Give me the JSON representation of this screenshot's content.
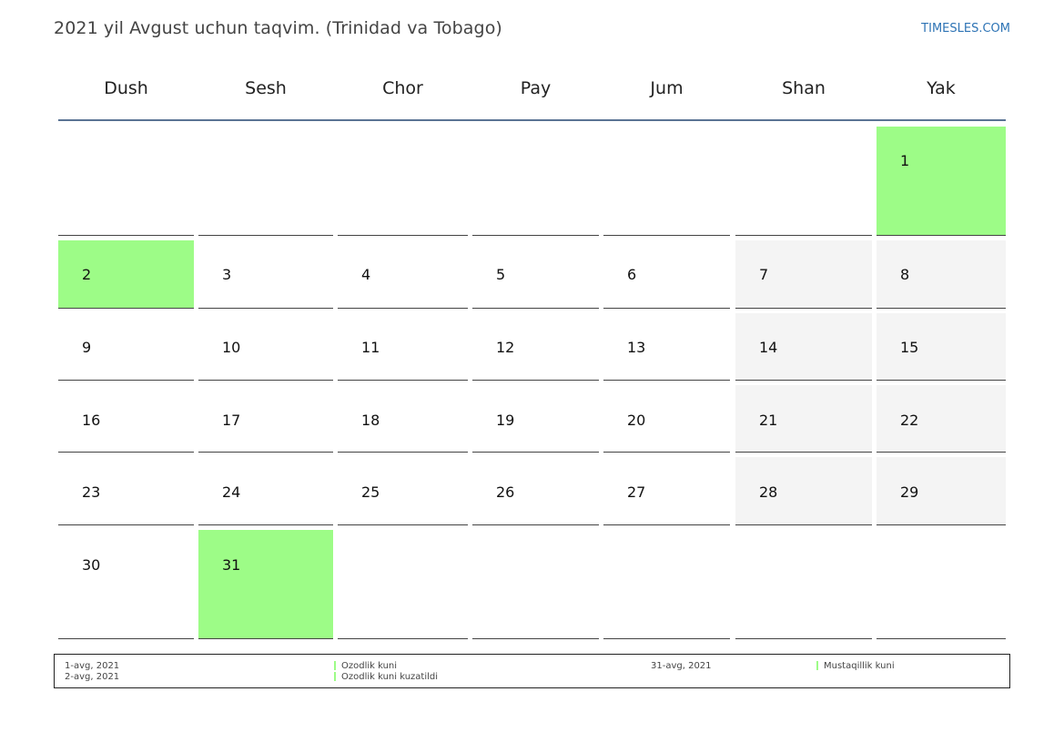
{
  "header": {
    "title": "2021 yil Avgust uchun taqvim. (Trinidad va Tobago)",
    "brand": "TIMESLES.COM"
  },
  "weekdays": [
    "Dush",
    "Sesh",
    "Chor",
    "Pay",
    "Jum",
    "Shan",
    "Yak"
  ],
  "month": {
    "first_weekday_index": 6,
    "days_in_month": 31,
    "weekend_columns": [
      5,
      6
    ],
    "holidays": [
      1,
      2,
      31
    ]
  },
  "colors": {
    "holiday": "#9dfc87",
    "weekend": "#f4f4f4",
    "header_rule": "#5a7394",
    "brand": "#2e74b5"
  },
  "legend": {
    "left": [
      {
        "date": "1-avg, 2021",
        "name": "Ozodlik kuni"
      },
      {
        "date": "2-avg, 2021",
        "name": "Ozodlik kuni kuzatildi"
      }
    ],
    "right": [
      {
        "date": "31-avg, 2021",
        "name": "Mustaqillik kuni"
      }
    ]
  }
}
